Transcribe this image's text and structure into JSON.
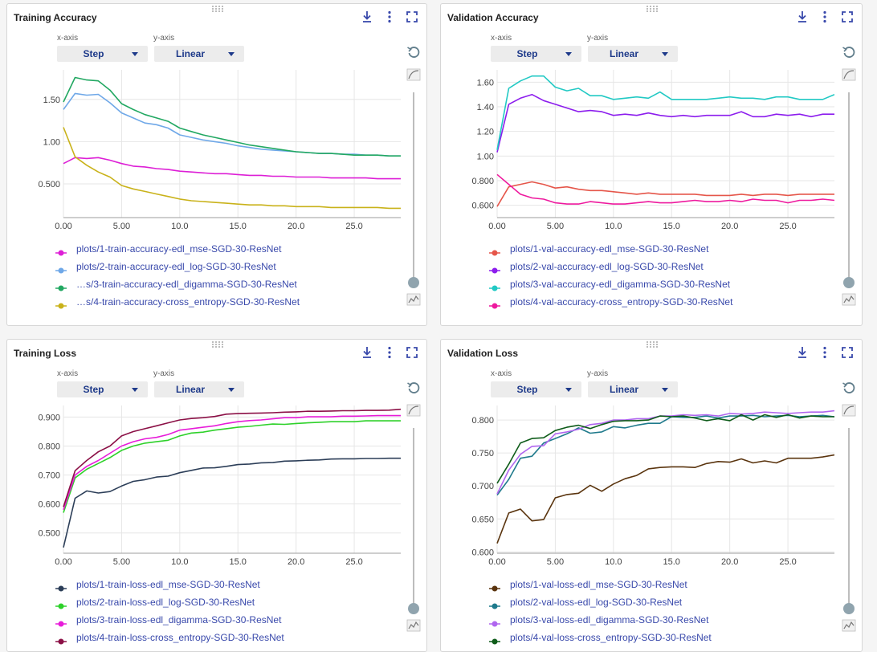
{
  "axis_controls": {
    "x_label": "x-axis",
    "x_value": "Step",
    "y_label": "y-axis",
    "y_value": "Linear"
  },
  "icons": {
    "download": "download-icon",
    "more": "more-vert-icon",
    "fullscreen": "fullscreen-icon",
    "reset": "reset-icon",
    "smoothing": "smoothing-icon",
    "linechart": "line-chart-icon",
    "drag": "drag-handle-icon"
  },
  "panels": [
    {
      "title": "Training Accuracy"
    },
    {
      "title": "Validation Accuracy"
    },
    {
      "title": "Training Loss"
    },
    {
      "title": "Validation Loss"
    }
  ],
  "chart_data": [
    {
      "type": "line",
      "title": "Training Accuracy",
      "xlim": [
        0,
        29
      ],
      "ylim": [
        0.1,
        1.85
      ],
      "xticks": [
        0,
        5,
        10,
        15,
        20,
        25
      ],
      "xtick_labels": [
        "0.00",
        "5.00",
        "10.0",
        "15.0",
        "20.0",
        "25.0"
      ],
      "yticks": [
        0.5,
        1.0,
        1.5
      ],
      "ytick_labels": [
        "0.500",
        "1.00",
        "1.50"
      ],
      "grid": true,
      "x": [
        0,
        1,
        2,
        3,
        4,
        5,
        6,
        7,
        8,
        9,
        10,
        11,
        12,
        13,
        14,
        15,
        16,
        17,
        18,
        19,
        20,
        21,
        22,
        23,
        24,
        25,
        26,
        27,
        28,
        29
      ],
      "series": [
        {
          "name": "plots/1-train-accuracy-edl_mse-SGD-30-ResNet",
          "legend_label": "plots/1-train-accuracy-edl_mse-SGD-30-ResNet",
          "color": "#dd1fd6",
          "values": [
            0.74,
            0.81,
            0.8,
            0.81,
            0.78,
            0.74,
            0.71,
            0.7,
            0.68,
            0.67,
            0.65,
            0.64,
            0.63,
            0.62,
            0.62,
            0.61,
            0.6,
            0.6,
            0.59,
            0.59,
            0.58,
            0.58,
            0.58,
            0.57,
            0.57,
            0.57,
            0.57,
            0.56,
            0.56,
            0.56
          ]
        },
        {
          "name": "plots/2-train-accuracy-edl_log-SGD-30-ResNet",
          "legend_label": "plots/2-train-accuracy-edl_log-SGD-30-ResNet",
          "color": "#6fa8e8",
          "values": [
            1.38,
            1.57,
            1.55,
            1.56,
            1.46,
            1.34,
            1.28,
            1.22,
            1.2,
            1.16,
            1.08,
            1.05,
            1.02,
            1.0,
            0.98,
            0.95,
            0.93,
            0.91,
            0.9,
            0.89,
            0.88,
            0.87,
            0.86,
            0.86,
            0.85,
            0.85,
            0.84,
            0.84,
            0.83,
            0.83
          ]
        },
        {
          "name": "plots/3-train-accuracy-edl_digamma-SGD-30-ResNet",
          "legend_label": "…s/3-train-accuracy-edl_digamma-SGD-30-ResNet",
          "color": "#22a862",
          "values": [
            1.47,
            1.76,
            1.73,
            1.72,
            1.61,
            1.45,
            1.38,
            1.32,
            1.28,
            1.24,
            1.16,
            1.12,
            1.08,
            1.05,
            1.02,
            0.99,
            0.96,
            0.94,
            0.92,
            0.9,
            0.88,
            0.87,
            0.86,
            0.86,
            0.85,
            0.84,
            0.84,
            0.84,
            0.83,
            0.83
          ]
        },
        {
          "name": "plots/4-train-accuracy-cross_entropy-SGD-30-ResNet",
          "legend_label": "…s/4-train-accuracy-cross_entropy-SGD-30-ResNet",
          "color": "#c9b21a",
          "values": [
            1.17,
            0.82,
            0.72,
            0.64,
            0.58,
            0.48,
            0.44,
            0.41,
            0.38,
            0.35,
            0.32,
            0.3,
            0.29,
            0.28,
            0.27,
            0.26,
            0.25,
            0.25,
            0.24,
            0.24,
            0.23,
            0.23,
            0.23,
            0.22,
            0.22,
            0.22,
            0.22,
            0.22,
            0.21,
            0.21
          ]
        }
      ]
    },
    {
      "type": "line",
      "title": "Validation Accuracy",
      "xlim": [
        0,
        29
      ],
      "ylim": [
        0.5,
        1.7
      ],
      "xticks": [
        0,
        5,
        10,
        15,
        20,
        25
      ],
      "xtick_labels": [
        "0.00",
        "5.00",
        "10.0",
        "15.0",
        "20.0",
        "25.0"
      ],
      "yticks": [
        0.6,
        0.8,
        1.0,
        1.2,
        1.4,
        1.6
      ],
      "ytick_labels": [
        "0.600",
        "0.800",
        "1.00",
        "1.20",
        "1.40",
        "1.60"
      ],
      "grid": true,
      "x": [
        0,
        1,
        2,
        3,
        4,
        5,
        6,
        7,
        8,
        9,
        10,
        11,
        12,
        13,
        14,
        15,
        16,
        17,
        18,
        19,
        20,
        21,
        22,
        23,
        24,
        25,
        26,
        27,
        28,
        29
      ],
      "series": [
        {
          "name": "plots/1-val-accuracy-edl_mse-SGD-30-ResNet",
          "legend_label": "plots/1-val-accuracy-edl_mse-SGD-30-ResNet",
          "color": "#e5564a",
          "values": [
            0.59,
            0.75,
            0.77,
            0.79,
            0.77,
            0.74,
            0.75,
            0.73,
            0.72,
            0.72,
            0.71,
            0.7,
            0.69,
            0.7,
            0.69,
            0.69,
            0.69,
            0.69,
            0.68,
            0.68,
            0.68,
            0.69,
            0.68,
            0.69,
            0.69,
            0.68,
            0.69,
            0.69,
            0.69,
            0.69
          ]
        },
        {
          "name": "plots/2-val-accuracy-edl_log-SGD-30-ResNet",
          "legend_label": "plots/2-val-accuracy-edl_log-SGD-30-ResNet",
          "color": "#8c1ded",
          "values": [
            1.03,
            1.42,
            1.47,
            1.5,
            1.45,
            1.42,
            1.39,
            1.36,
            1.37,
            1.36,
            1.33,
            1.34,
            1.33,
            1.35,
            1.33,
            1.32,
            1.33,
            1.32,
            1.33,
            1.33,
            1.33,
            1.36,
            1.32,
            1.32,
            1.34,
            1.33,
            1.34,
            1.32,
            1.34,
            1.34
          ]
        },
        {
          "name": "plots/3-val-accuracy-edl_digamma-SGD-30-ResNet",
          "legend_label": "plots/3-val-accuracy-edl_digamma-SGD-30-ResNet",
          "color": "#22c9c4",
          "values": [
            1.05,
            1.55,
            1.61,
            1.65,
            1.65,
            1.56,
            1.53,
            1.55,
            1.49,
            1.49,
            1.46,
            1.47,
            1.48,
            1.47,
            1.52,
            1.46,
            1.46,
            1.46,
            1.46,
            1.47,
            1.48,
            1.47,
            1.47,
            1.46,
            1.48,
            1.48,
            1.46,
            1.46,
            1.46,
            1.5
          ]
        },
        {
          "name": "plots/4-val-accuracy-cross_entropy-SGD-30-ResNet",
          "legend_label": "plots/4-val-accuracy-cross_entropy-SGD-30-ResNet",
          "color": "#ee1a9e",
          "values": [
            0.85,
            0.77,
            0.69,
            0.66,
            0.65,
            0.62,
            0.61,
            0.61,
            0.63,
            0.62,
            0.61,
            0.61,
            0.62,
            0.63,
            0.62,
            0.62,
            0.63,
            0.64,
            0.63,
            0.63,
            0.64,
            0.63,
            0.65,
            0.64,
            0.64,
            0.62,
            0.64,
            0.64,
            0.65,
            0.64
          ]
        }
      ]
    },
    {
      "type": "line",
      "title": "Training Loss",
      "xlim": [
        0,
        29
      ],
      "ylim": [
        0.43,
        0.94
      ],
      "xticks": [
        0,
        5,
        10,
        15,
        20,
        25
      ],
      "xtick_labels": [
        "0.00",
        "5.00",
        "10.0",
        "15.0",
        "20.0",
        "25.0"
      ],
      "yticks": [
        0.5,
        0.6,
        0.7,
        0.8,
        0.9
      ],
      "ytick_labels": [
        "0.500",
        "0.600",
        "0.700",
        "0.800",
        "0.900"
      ],
      "grid": true,
      "x": [
        0,
        1,
        2,
        3,
        4,
        5,
        6,
        7,
        8,
        9,
        10,
        11,
        12,
        13,
        14,
        15,
        16,
        17,
        18,
        19,
        20,
        21,
        22,
        23,
        24,
        25,
        26,
        27,
        28,
        29
      ],
      "series": [
        {
          "name": "plots/1-train-loss-edl_mse-SGD-30-ResNet",
          "legend_label": "plots/1-train-loss-edl_mse-SGD-30-ResNet",
          "color": "#2c3e58",
          "values": [
            0.45,
            0.62,
            0.645,
            0.638,
            0.643,
            0.662,
            0.678,
            0.684,
            0.693,
            0.696,
            0.708,
            0.716,
            0.724,
            0.725,
            0.73,
            0.736,
            0.738,
            0.742,
            0.743,
            0.748,
            0.749,
            0.751,
            0.752,
            0.755,
            0.756,
            0.756,
            0.757,
            0.757,
            0.758,
            0.758
          ]
        },
        {
          "name": "plots/2-train-loss-edl_log-SGD-30-ResNet",
          "legend_label": "plots/2-train-loss-edl_log-SGD-30-ResNet",
          "color": "#2ed12a",
          "values": [
            0.57,
            0.69,
            0.72,
            0.74,
            0.76,
            0.785,
            0.8,
            0.81,
            0.815,
            0.82,
            0.835,
            0.845,
            0.848,
            0.855,
            0.86,
            0.865,
            0.868,
            0.872,
            0.876,
            0.875,
            0.878,
            0.88,
            0.882,
            0.884,
            0.884,
            0.884,
            0.887,
            0.887,
            0.887,
            0.887
          ]
        },
        {
          "name": "plots/3-train-loss-edl_digamma-SGD-30-ResNet",
          "legend_label": "plots/3-train-loss-edl_digamma-SGD-30-ResNet",
          "color": "#e71cd9",
          "values": [
            0.58,
            0.7,
            0.73,
            0.75,
            0.775,
            0.8,
            0.815,
            0.825,
            0.83,
            0.84,
            0.855,
            0.86,
            0.865,
            0.87,
            0.878,
            0.884,
            0.888,
            0.89,
            0.894,
            0.898,
            0.898,
            0.901,
            0.901,
            0.901,
            0.903,
            0.903,
            0.904,
            0.905,
            0.905,
            0.905
          ]
        },
        {
          "name": "plots/4-train-loss-cross_entropy-SGD-30-ResNet",
          "legend_label": "plots/4-train-loss-cross_entropy-SGD-30-ResNet",
          "color": "#8b1046",
          "values": [
            0.59,
            0.715,
            0.75,
            0.78,
            0.8,
            0.835,
            0.85,
            0.86,
            0.87,
            0.88,
            0.89,
            0.895,
            0.898,
            0.902,
            0.91,
            0.912,
            0.913,
            0.914,
            0.915,
            0.917,
            0.918,
            0.92,
            0.92,
            0.921,
            0.922,
            0.922,
            0.923,
            0.923,
            0.924,
            0.927
          ]
        }
      ]
    },
    {
      "type": "line",
      "title": "Validation Loss",
      "xlim": [
        0,
        29
      ],
      "ylim": [
        0.598,
        0.822
      ],
      "xticks": [
        0,
        5,
        10,
        15,
        20,
        25
      ],
      "xtick_labels": [
        "0.00",
        "5.00",
        "10.0",
        "15.0",
        "20.0",
        "25.0"
      ],
      "yticks": [
        0.6,
        0.65,
        0.7,
        0.75,
        0.8
      ],
      "ytick_labels": [
        "0.600",
        "0.650",
        "0.700",
        "0.750",
        "0.800"
      ],
      "grid": true,
      "x": [
        0,
        1,
        2,
        3,
        4,
        5,
        6,
        7,
        8,
        9,
        10,
        11,
        12,
        13,
        14,
        15,
        16,
        17,
        18,
        19,
        20,
        21,
        22,
        23,
        24,
        25,
        26,
        27,
        28,
        29
      ],
      "series": [
        {
          "name": "plots/1-val-loss-edl_mse-SGD-30-ResNet",
          "legend_label": "plots/1-val-loss-edl_mse-SGD-30-ResNet",
          "color": "#5a340e",
          "values": [
            0.613,
            0.659,
            0.665,
            0.647,
            0.649,
            0.682,
            0.687,
            0.689,
            0.701,
            0.692,
            0.703,
            0.711,
            0.716,
            0.726,
            0.728,
            0.729,
            0.729,
            0.728,
            0.734,
            0.737,
            0.736,
            0.741,
            0.735,
            0.738,
            0.735,
            0.742,
            0.742,
            0.742,
            0.744,
            0.747
          ]
        },
        {
          "name": "plots/2-val-loss-edl_log-SGD-30-ResNet",
          "legend_label": "plots/2-val-loss-edl_log-SGD-30-ResNet",
          "color": "#1f7a8c",
          "values": [
            0.686,
            0.71,
            0.742,
            0.745,
            0.765,
            0.772,
            0.779,
            0.788,
            0.78,
            0.782,
            0.79,
            0.788,
            0.792,
            0.795,
            0.795,
            0.805,
            0.804,
            0.804,
            0.806,
            0.803,
            0.806,
            0.806,
            0.807,
            0.805,
            0.806,
            0.807,
            0.805,
            0.806,
            0.807,
            0.805
          ]
        },
        {
          "name": "plots/3-val-loss-edl_digamma-SGD-30-ResNet",
          "legend_label": "plots/3-val-loss-edl_digamma-SGD-30-ResNet",
          "color": "#b066ef",
          "values": [
            0.688,
            0.724,
            0.748,
            0.76,
            0.761,
            0.779,
            0.782,
            0.786,
            0.793,
            0.795,
            0.8,
            0.8,
            0.802,
            0.802,
            0.806,
            0.806,
            0.808,
            0.807,
            0.808,
            0.806,
            0.81,
            0.809,
            0.81,
            0.812,
            0.811,
            0.81,
            0.811,
            0.812,
            0.812,
            0.814
          ]
        },
        {
          "name": "plots/4-val-loss-cross_entropy-SGD-30-ResNet",
          "legend_label": "plots/4-val-loss-cross_entropy-SGD-30-ResNet",
          "color": "#0f5c1a",
          "values": [
            0.704,
            0.733,
            0.765,
            0.772,
            0.773,
            0.784,
            0.789,
            0.792,
            0.787,
            0.793,
            0.798,
            0.799,
            0.799,
            0.8,
            0.806,
            0.805,
            0.806,
            0.803,
            0.799,
            0.802,
            0.799,
            0.808,
            0.8,
            0.808,
            0.804,
            0.808,
            0.803,
            0.806,
            0.805,
            0.805
          ]
        }
      ]
    }
  ]
}
